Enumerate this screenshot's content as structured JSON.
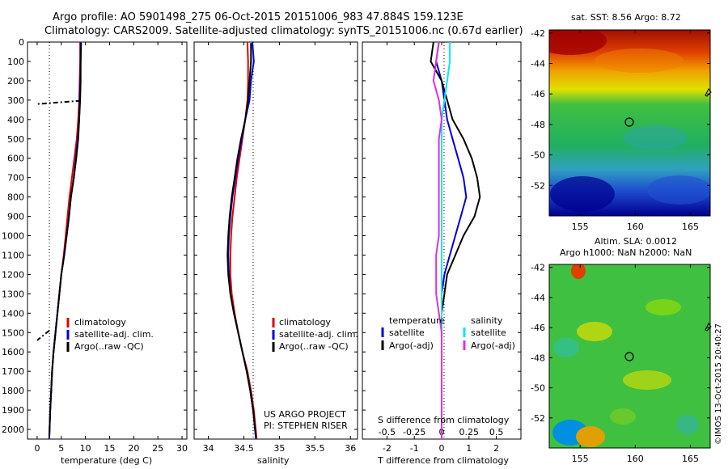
{
  "header": {
    "title1": "Argo profile: AO 5901498_275 06-Oct-2015 20151006_983 47.884S 159.123E",
    "title2": "Climatology: CARS2009. Satellite-adjusted climatology: synTS_20151006.nc (0.67d earlier)"
  },
  "colors": {
    "climatology": "#e00000",
    "satellite": "#0000e0",
    "argo": "#000000",
    "salinity_sat": "#00e8f0",
    "salinity_argo": "#e030e0"
  },
  "depth_axis": {
    "range": [
      0,
      2050
    ],
    "ticks": [
      "0",
      "100",
      "200",
      "300",
      "400",
      "500",
      "600",
      "700",
      "800",
      "900",
      "1000",
      "1100",
      "1200",
      "1300",
      "1400",
      "1500",
      "1600",
      "1700",
      "1800",
      "1900",
      "2000"
    ]
  },
  "panel_temp": {
    "xlabel": "temperature (deg C)",
    "xlim": [
      -2,
      31
    ],
    "xticks": [
      "0",
      "5",
      "10",
      "15",
      "20",
      "25",
      "30"
    ],
    "legend": [
      "climatology",
      "satellite-adj. clim.",
      "Argo(..raw -QC)"
    ]
  },
  "panel_sal": {
    "xlabel": "salinity",
    "xlim": [
      33.8,
      36.1
    ],
    "xticks": [
      "34",
      "34.5",
      "35",
      "35.5",
      "36"
    ],
    "legend": [
      "climatology",
      "satellite-adj. clim.",
      "Argo(..raw -QC)"
    ],
    "credit1": "US ARGO PROJECT",
    "credit2": "PI: STEPHEN RISER"
  },
  "panel_diff": {
    "xlabel": "T difference from climatology",
    "xlabel_top": "S difference from climatology",
    "xlim": [
      -2.9,
      2.9
    ],
    "xticks_bottom": [
      "-2",
      "-1",
      "0",
      "1",
      "2"
    ],
    "xticks_top": [
      "-0.5",
      "-0.25",
      "0",
      "0.25",
      "0.5"
    ],
    "legend": {
      "temp_head": "temperature",
      "temp_sat": "satellite",
      "temp_argo": "Argo(-adj)",
      "sal_head": "salinity",
      "sal_sat": "satellite",
      "sal_argo": "Argo(-adj)"
    }
  },
  "map_sst": {
    "title": "sat. SST: 8.56  Argo: 8.72",
    "yticks": [
      "-42",
      "-44",
      "-46",
      "-48",
      "-50",
      "-52"
    ],
    "xticks": [
      "155",
      "160",
      "165"
    ]
  },
  "map_sla": {
    "title1": "Altim. SLA: 0.0012",
    "title2": "Argo h1000: NaN h2000: NaN",
    "yticks": [
      "-42",
      "-44",
      "-46",
      "-48",
      "-50",
      "-52"
    ],
    "xticks": [
      "155",
      "160",
      "165"
    ]
  },
  "credit_side": "©IMOS 13-Oct-2015 20:40:27",
  "chart_data": [
    {
      "type": "line",
      "xlabel": "temperature (deg C)",
      "ylabel": "",
      "xlim": [
        -2,
        31
      ],
      "ylim": [
        2050,
        0
      ],
      "series": [
        {
          "name": "climatology",
          "x": [
            8.9,
            8.9,
            8.8,
            8.7,
            8.5,
            8.2,
            7.7,
            7.2,
            6.7,
            6.3,
            5.9,
            5.5,
            5.0,
            4.6,
            4.2,
            3.8,
            3.4,
            3.1,
            2.9,
            2.7,
            2.5
          ],
          "y": [
            0,
            100,
            200,
            300,
            400,
            500,
            600,
            700,
            800,
            900,
            1000,
            1100,
            1200,
            1300,
            1400,
            1500,
            1600,
            1700,
            1800,
            1900,
            2050
          ]
        },
        {
          "name": "satellite-adj. clim.",
          "x": [
            9.0,
            9.0,
            8.9,
            8.8,
            8.7,
            8.4,
            8.0,
            7.6,
            7.0,
            6.6,
            6.1,
            5.6,
            5.0,
            4.6,
            4.2,
            3.8,
            3.4,
            3.1,
            2.9,
            2.7,
            2.5
          ],
          "y": [
            0,
            100,
            200,
            300,
            400,
            500,
            600,
            700,
            800,
            900,
            1000,
            1100,
            1200,
            1300,
            1400,
            1500,
            1600,
            1700,
            1800,
            1900,
            2050
          ]
        },
        {
          "name": "Argo(..raw -QC)",
          "x": [
            9.1,
            9.0,
            9.0,
            8.9,
            8.7,
            8.5,
            8.1,
            7.6,
            7.0,
            6.6,
            6.1,
            5.6,
            5.0,
            4.6,
            4.2,
            3.8,
            3.4,
            3.1,
            2.9,
            2.7,
            2.5
          ],
          "y": [
            5,
            100,
            200,
            300,
            400,
            500,
            600,
            700,
            800,
            900,
            1000,
            1100,
            1200,
            1300,
            1400,
            1500,
            1600,
            1700,
            1800,
            1900,
            2040
          ]
        }
      ]
    },
    {
      "type": "line",
      "xlabel": "salinity",
      "ylabel": "",
      "xlim": [
        33.8,
        36.1
      ],
      "ylim": [
        2050,
        0
      ],
      "series": [
        {
          "name": "climatology",
          "x": [
            34.55,
            34.56,
            34.56,
            34.55,
            34.52,
            34.48,
            34.44,
            34.4,
            34.37,
            34.34,
            34.32,
            34.31,
            34.31,
            34.33,
            34.37,
            34.42,
            34.48,
            34.55,
            34.6,
            34.64,
            34.68
          ],
          "y": [
            0,
            100,
            200,
            300,
            400,
            500,
            600,
            700,
            800,
            900,
            1000,
            1100,
            1200,
            1300,
            1400,
            1500,
            1600,
            1700,
            1800,
            1900,
            2050
          ]
        },
        {
          "name": "satellite-adj. clim.",
          "x": [
            34.62,
            34.64,
            34.6,
            34.58,
            34.52,
            34.47,
            34.42,
            34.38,
            34.34,
            34.31,
            34.29,
            34.28,
            34.29,
            34.31,
            34.36,
            34.42,
            34.48,
            34.54,
            34.59,
            34.63,
            34.67
          ],
          "y": [
            0,
            100,
            200,
            300,
            400,
            500,
            600,
            700,
            800,
            900,
            1000,
            1100,
            1200,
            1300,
            1400,
            1500,
            1600,
            1700,
            1800,
            1900,
            2050
          ]
        },
        {
          "name": "Argo(..raw -QC)",
          "x": [
            34.6,
            34.6,
            34.58,
            34.56,
            34.52,
            34.46,
            34.41,
            34.37,
            34.33,
            34.3,
            34.28,
            34.27,
            34.28,
            34.31,
            34.36,
            34.42,
            34.48,
            34.54,
            34.59,
            34.63,
            34.67
          ],
          "y": [
            5,
            100,
            200,
            300,
            400,
            500,
            600,
            700,
            800,
            900,
            1000,
            1100,
            1200,
            1300,
            1400,
            1500,
            1600,
            1700,
            1800,
            1900,
            2040
          ]
        }
      ]
    },
    {
      "type": "line",
      "xlabel": "T difference from climatology",
      "ylabel": "",
      "xlim": [
        -2.9,
        2.9
      ],
      "ylim": [
        2050,
        0
      ],
      "series": [
        {
          "name": "temperature satellite",
          "x": [
            -0.1,
            -0.2,
            0.0,
            0.1,
            0.2,
            0.4,
            0.6,
            0.8,
            0.9,
            0.7,
            0.5,
            0.3,
            0.1,
            0.0,
            0.0,
            0.0,
            0.0,
            0.0,
            0.0,
            0.0,
            0.0
          ],
          "y": [
            0,
            100,
            200,
            300,
            400,
            500,
            600,
            700,
            800,
            900,
            1000,
            1100,
            1200,
            1300,
            1400,
            1500,
            1600,
            1700,
            1800,
            1900,
            2050
          ]
        },
        {
          "name": "temperature Argo(-adj)",
          "x": [
            -0.3,
            -0.4,
            0.0,
            0.2,
            0.4,
            0.8,
            1.1,
            1.3,
            1.4,
            1.2,
            0.8,
            0.5,
            0.2,
            0.1,
            0.0,
            0.0,
            0.0,
            0.0,
            0.0,
            0.0,
            0.0
          ],
          "y": [
            0,
            100,
            200,
            300,
            400,
            500,
            600,
            700,
            800,
            900,
            1000,
            1100,
            1200,
            1300,
            1400,
            1500,
            1600,
            1700,
            1800,
            1900,
            2050
          ]
        },
        {
          "name": "salinity satellite",
          "x": [
            0.3,
            0.3,
            0.2,
            0.1,
            0.0,
            0.0,
            0.0,
            0.0,
            0.0,
            0.0,
            0.0,
            0.0,
            0.0,
            0.0,
            0.0,
            0.0,
            0.0,
            0.0,
            0.0,
            0.0,
            0.0
          ],
          "y": [
            0,
            100,
            200,
            300,
            400,
            500,
            600,
            700,
            800,
            900,
            1000,
            1100,
            1200,
            1300,
            1400,
            1500,
            1600,
            1700,
            1800,
            1900,
            2050
          ]
        },
        {
          "name": "salinity Argo(-adj)",
          "x": [
            -0.1,
            -0.2,
            -0.3,
            -0.1,
            0.0,
            -0.1,
            -0.1,
            -0.1,
            -0.1,
            -0.1,
            -0.1,
            -0.2,
            -0.2,
            -0.2,
            -0.1,
            0.0,
            0.0,
            0.0,
            0.0,
            0.0,
            0.0
          ],
          "y": [
            0,
            100,
            200,
            300,
            400,
            500,
            600,
            700,
            800,
            900,
            1000,
            1100,
            1200,
            1300,
            1400,
            1500,
            1600,
            1700,
            1800,
            1900,
            2050
          ]
        }
      ]
    }
  ]
}
